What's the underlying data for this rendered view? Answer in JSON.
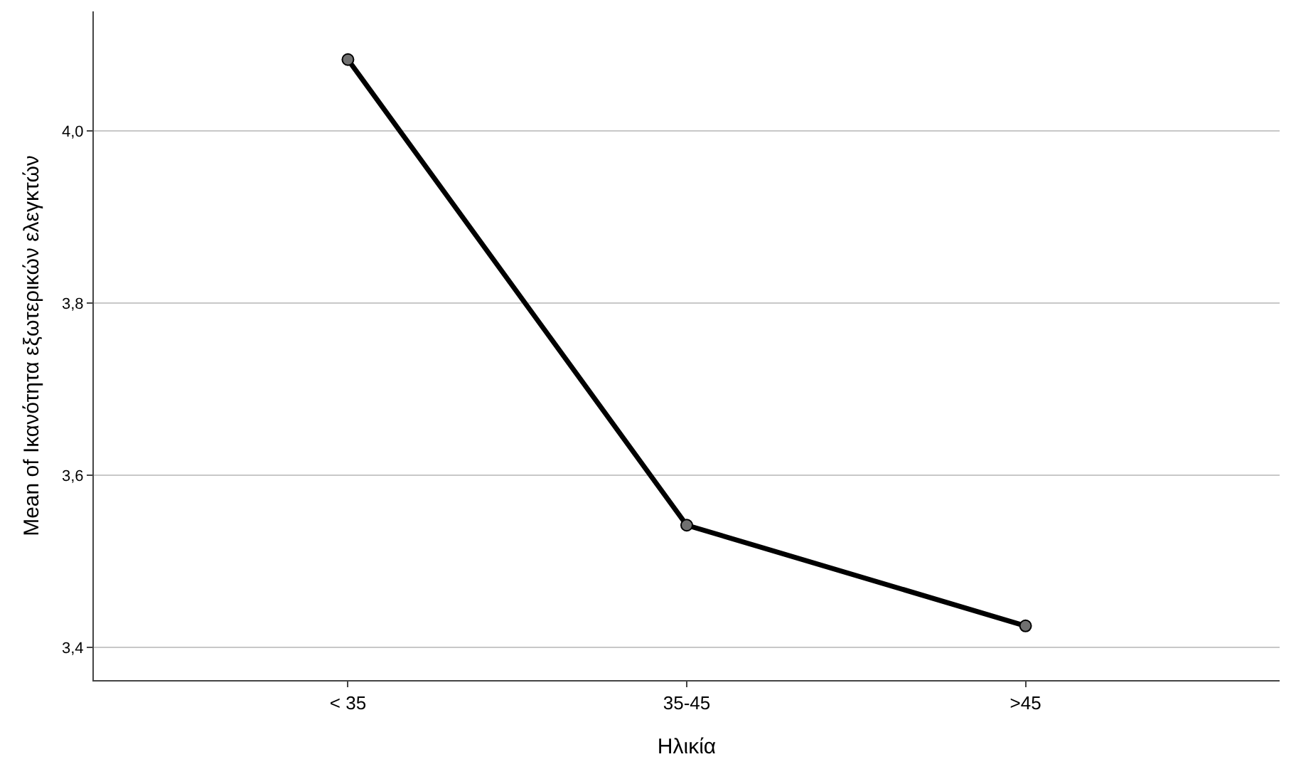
{
  "chart_data": {
    "type": "line",
    "xlabel": "Ηλικία",
    "ylabel": "Mean of Ικανότητα εξωτερικών ελεγκτών",
    "categories": [
      "< 35",
      "35-45",
      ">45"
    ],
    "series": [
      {
        "color": "#000000",
        "values": [
          4.083,
          3.542,
          3.425
        ]
      }
    ],
    "ylim": [
      3.362,
      4.139
    ],
    "yticks": [
      {
        "value": 3.4,
        "label": "3,4"
      },
      {
        "value": 3.6,
        "label": "3,6"
      },
      {
        "value": 3.8,
        "label": "3,8"
      },
      {
        "value": 4.0,
        "label": "4,0"
      }
    ],
    "grid": "y",
    "marker": "circle",
    "line_style": "solid"
  }
}
